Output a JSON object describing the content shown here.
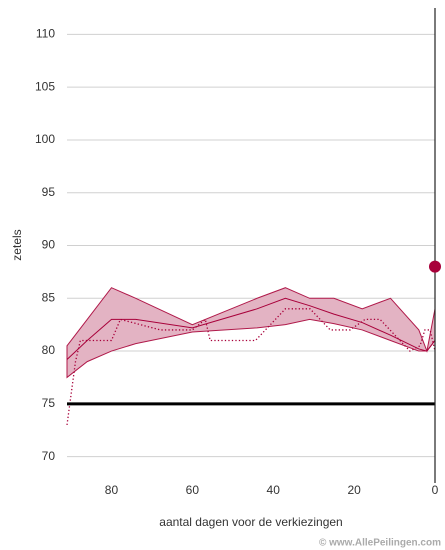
{
  "chart_data": {
    "type": "line",
    "xlabel": "aantal dagen voor de verkiezingen",
    "ylabel": "zetels",
    "watermark": "© www.AllePeilingen.com",
    "xlim": [
      91,
      0
    ],
    "ylim": [
      67.5,
      112.5
    ],
    "xticks": [
      80,
      60,
      40,
      20,
      0
    ],
    "yticks": [
      70,
      75,
      80,
      85,
      90,
      95,
      100,
      105,
      110
    ],
    "grid": true,
    "band": {
      "color": "#b0194a",
      "fill": "#e3b3c3",
      "x": [
        91,
        86,
        80,
        74,
        60,
        44,
        37,
        31,
        25,
        18,
        11,
        4,
        2,
        0
      ],
      "upper": [
        80.5,
        83,
        86,
        85,
        82.5,
        85,
        86,
        85,
        85,
        84,
        85,
        82,
        80,
        84
      ],
      "lower": [
        77.5,
        79,
        80,
        80.7,
        81.8,
        82.2,
        82.5,
        83,
        82.6,
        82,
        81,
        80,
        80,
        81
      ]
    },
    "series": [
      {
        "color": "#a8003a",
        "style": "solid",
        "x": [
          91,
          86,
          80,
          74,
          60,
          44,
          37,
          31,
          25,
          18,
          11,
          4,
          2,
          0
        ],
        "values": [
          79.2,
          81,
          83,
          83,
          82.2,
          84,
          85,
          84.3,
          83.5,
          82.7,
          81.5,
          80.2,
          80,
          81
        ]
      },
      {
        "color": "#a8003a",
        "style": "dotted",
        "x": [
          91,
          88.9,
          87.7,
          80,
          77.8,
          67.9,
          60,
          56.8,
          55.6,
          44.4,
          37,
          30.9,
          25.9,
          21,
          17.3,
          13.6,
          6.2,
          3.7,
          2.5,
          1.2,
          0
        ],
        "values": [
          73,
          79,
          81,
          81,
          83,
          82,
          82,
          83,
          81,
          81,
          84,
          84,
          82,
          82,
          83,
          83,
          80,
          80.5,
          82,
          82,
          80
        ]
      }
    ],
    "hline": 75,
    "vline": 0,
    "points": [
      {
        "x": 0,
        "value": 88,
        "color": "#a8003a"
      }
    ]
  }
}
